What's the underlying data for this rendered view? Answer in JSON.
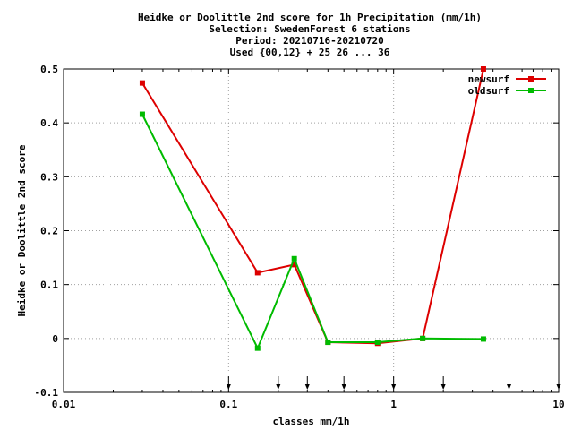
{
  "chart_data": {
    "type": "line",
    "title_lines": [
      "Heidke or Doolittle 2nd score  for 1h Precipitation (mm/1h)",
      "Selection: SwedenForest      6 stations",
      "Period: 20210716-20210720",
      "Used {00,12} + 25 26 ... 36"
    ],
    "xlabel": "classes mm/1h",
    "ylabel": "Heidke or Doolittle 2nd score",
    "x_scale": "log",
    "xlim": [
      0.01,
      10
    ],
    "ylim": [
      -0.1,
      0.5
    ],
    "x_ticks": [
      {
        "value": 0.01,
        "label": "0.01"
      },
      {
        "value": 0.1,
        "label": "0.1"
      },
      {
        "value": 1,
        "label": "1"
      },
      {
        "value": 10,
        "label": "10"
      }
    ],
    "y_ticks": [
      {
        "value": -0.1,
        "label": "-0.1"
      },
      {
        "value": 0,
        "label": "0"
      },
      {
        "value": 0.1,
        "label": "0.1"
      },
      {
        "value": 0.2,
        "label": "0.2"
      },
      {
        "value": 0.3,
        "label": "0.3"
      },
      {
        "value": 0.4,
        "label": "0.4"
      },
      {
        "value": 0.5,
        "label": "0.5"
      }
    ],
    "grid": true,
    "legend_position": "top-right",
    "threshold_arrows": [
      0.1,
      0.2,
      0.3,
      0.5,
      1,
      2,
      5,
      10
    ],
    "series": [
      {
        "name": "newsurf",
        "color": "#dd0000",
        "x": [
          0.03,
          0.15,
          0.25,
          0.4,
          0.8,
          1.5,
          3.5
        ],
        "y": [
          0.474,
          0.122,
          0.137,
          -0.007,
          -0.009,
          0.0,
          0.5
        ]
      },
      {
        "name": "oldsurf",
        "color": "#00bb00",
        "x": [
          0.03,
          0.15,
          0.25,
          0.4,
          0.8,
          1.5,
          3.5
        ],
        "y": [
          0.416,
          -0.018,
          0.148,
          -0.007,
          -0.007,
          0.0,
          -0.001
        ]
      }
    ]
  }
}
